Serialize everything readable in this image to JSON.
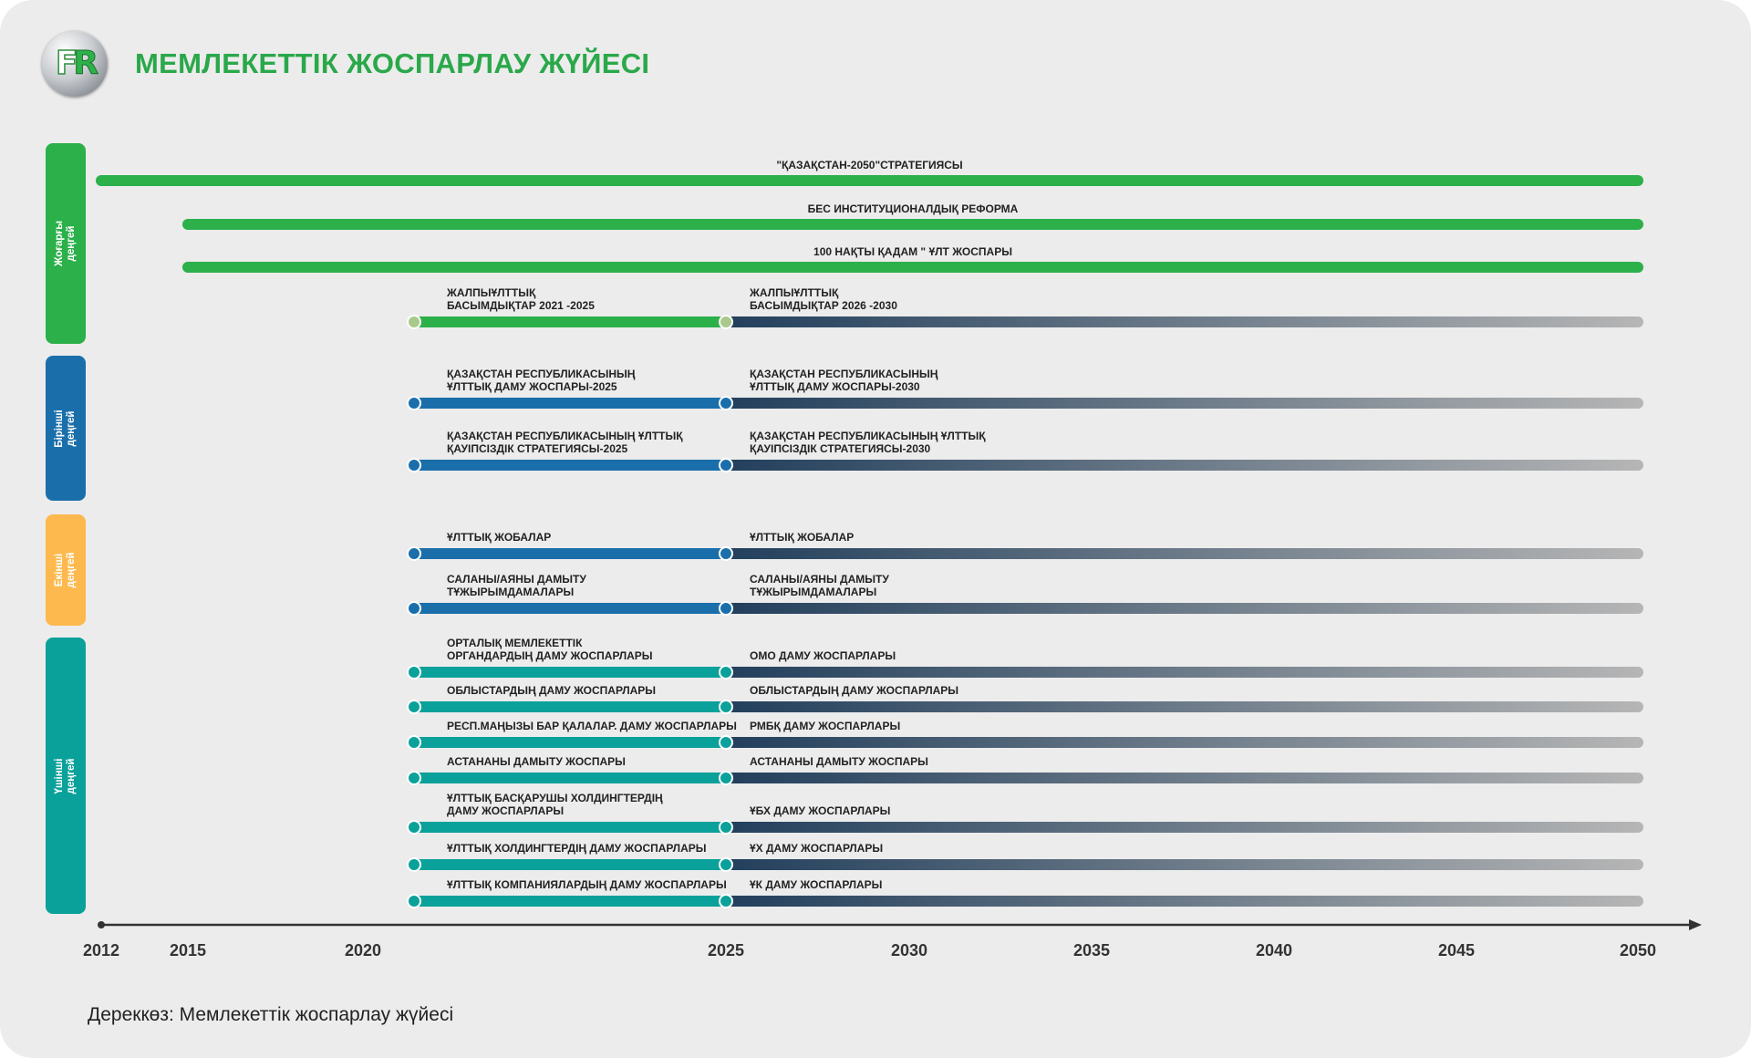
{
  "title": "МЕМЛЕКЕТТІК ЖОСПАРЛАУ ЖҮЙЕСІ",
  "source": "Дереккөз: Мемлекеттік жоспарлау жүйесі",
  "colors": {
    "green": "#2bb04a",
    "blue": "#1a6fab",
    "teal": "#0aa19a",
    "orange": "#fdb94e",
    "future_start": "#223f5c",
    "future_end": "#b5b5b5",
    "title": "#2aa84a"
  },
  "levels": [
    {
      "name": "Жоғарғы деңгей",
      "line1": "Жоғарғы",
      "line2": "деңгей",
      "color": "#2bb04a"
    },
    {
      "name": "Бірінші деңгей",
      "line1": "Бірінші",
      "line2": "деңгей",
      "color": "#1a6fab"
    },
    {
      "name": "Екінші деңгей",
      "line1": "Екінші",
      "line2": "деңгей",
      "color": "#fdb94e"
    },
    {
      "name": "Үшінші деңгей",
      "line1": "Үшінші",
      "line2": "деңгей",
      "color": "#0aa19a"
    }
  ],
  "axis": {
    "min": 2012,
    "max": 2050,
    "ticks": [
      "2012",
      "2015",
      "2020",
      "2025",
      "2030",
      "2035",
      "2040",
      "2045",
      "2050"
    ]
  },
  "top_programs": [
    {
      "label": "\"ҚАЗАҚСТАН-2050\"СТРАТЕГИЯСЫ",
      "start": 2012,
      "end": 2050
    },
    {
      "label": "БЕС ИНСТИТУЦИОНАЛДЫҚ РЕФОРМА",
      "start": 2015,
      "end": 2050
    },
    {
      "label": "100 НАҚТЫ ҚАДАМ \" ҰЛТ ЖОСПАРЫ",
      "start": 2015,
      "end": 2050
    }
  ],
  "programs": [
    {
      "color": "#2bb04a",
      "dot": "#a9c98a",
      "current": [
        "ЖАЛПЫҰЛТТЫҚ",
        "БАСЫМДЫҚТАР 2021 -2025"
      ],
      "future": [
        "ЖАЛПЫҰЛТТЫҚ",
        "БАСЫМДЫҚТАР 2026 -2030"
      ]
    },
    {
      "color": "#1a6fab",
      "dot": "#1a6fab",
      "current": [
        "ҚАЗАҚСТАН РЕСПУБЛИКАСЫНЫҢ",
        "ҰЛТТЫҚ ДАМУ ЖОСПАРЫ-2025"
      ],
      "future": [
        "ҚАЗАҚСТАН РЕСПУБЛИКАСЫНЫҢ",
        "ҰЛТТЫҚ ДАМУ ЖОСПАРЫ-2030"
      ]
    },
    {
      "color": "#1a6fab",
      "dot": "#1a6fab",
      "current": [
        "ҚАЗАҚСТАН РЕСПУБЛИКАСЫНЫҢ ҰЛТТЫҚ",
        "ҚАУІПСІЗДІК СТРАТЕГИЯСЫ-2025"
      ],
      "future": [
        "ҚАЗАҚСТАН РЕСПУБЛИКАСЫНЫҢ ҰЛТТЫҚ",
        "ҚАУІПСІЗДІК СТРАТЕГИЯСЫ-2030"
      ]
    },
    {
      "color": "#1a6fab",
      "dot": "#1a6fab",
      "current": [
        "ҰЛТТЫҚ ЖОБАЛАР"
      ],
      "future": [
        "ҰЛТТЫҚ ЖОБАЛАР"
      ]
    },
    {
      "color": "#1a6fab",
      "dot": "#1a6fab",
      "current": [
        "САЛАНЫ/АЯНЫ ДАМЫТУ",
        "ТҰЖЫРЫМДАМАЛАРЫ"
      ],
      "future": [
        "САЛАНЫ/АЯНЫ ДАМЫТУ",
        "ТҰЖЫРЫМДАМАЛАРЫ"
      ]
    },
    {
      "color": "#0aa19a",
      "dot": "#0aa19a",
      "current": [
        "ОРТАЛЫҚ МЕМЛЕКЕТТІК",
        "ОРГАНДАРДЫҢ ДАМУ ЖОСПАРЛАРЫ"
      ],
      "future": [
        "ОМО ДАМУ ЖОСПАРЛАРЫ"
      ]
    },
    {
      "color": "#0aa19a",
      "dot": "#0aa19a",
      "current": [
        "ОБЛЫСТАРДЫҢ ДАМУ ЖОСПАРЛАРЫ"
      ],
      "future": [
        "ОБЛЫСТАРДЫҢ ДАМУ ЖОСПАРЛАРЫ"
      ]
    },
    {
      "color": "#0aa19a",
      "dot": "#0aa19a",
      "current": [
        "РЕСП.МАҢЫЗЫ БАР ҚАЛАЛАР. ДАМУ ЖОСПАРЛАРЫ"
      ],
      "future": [
        "РМБҚ ДАМУ ЖОСПАРЛАРЫ"
      ]
    },
    {
      "color": "#0aa19a",
      "dot": "#0aa19a",
      "current": [
        "АСТАНАНЫ ДАМЫТУ ЖОСПАРЫ"
      ],
      "future": [
        "АСТАНАНЫ ДАМЫТУ ЖОСПАРЫ"
      ]
    },
    {
      "color": "#0aa19a",
      "dot": "#0aa19a",
      "current": [
        "ҰЛТТЫҚ БАСҚАРУШЫ ХОЛДИНГТЕРДІҢ",
        "ДАМУ ЖОСПАРЛАРЫ"
      ],
      "future": [
        "ҰБХ ДАМУ ЖОСПАРЛАРЫ"
      ]
    },
    {
      "color": "#0aa19a",
      "dot": "#0aa19a",
      "current": [
        "ҰЛТТЫҚ ХОЛДИНГТЕРДІҢ ДАМУ ЖОСПАРЛАРЫ"
      ],
      "future": [
        "ҰХ ДАМУ ЖОСПАРЛАРЫ"
      ]
    },
    {
      "color": "#0aa19a",
      "dot": "#0aa19a",
      "current": [
        "ҰЛТТЫҚ КОМПАНИЯЛАРДЫҢ ДАМУ ЖОСПАРЛАРЫ"
      ],
      "future": [
        "ҰК ДАМУ ЖОСПАРЛАРЫ"
      ]
    }
  ]
}
